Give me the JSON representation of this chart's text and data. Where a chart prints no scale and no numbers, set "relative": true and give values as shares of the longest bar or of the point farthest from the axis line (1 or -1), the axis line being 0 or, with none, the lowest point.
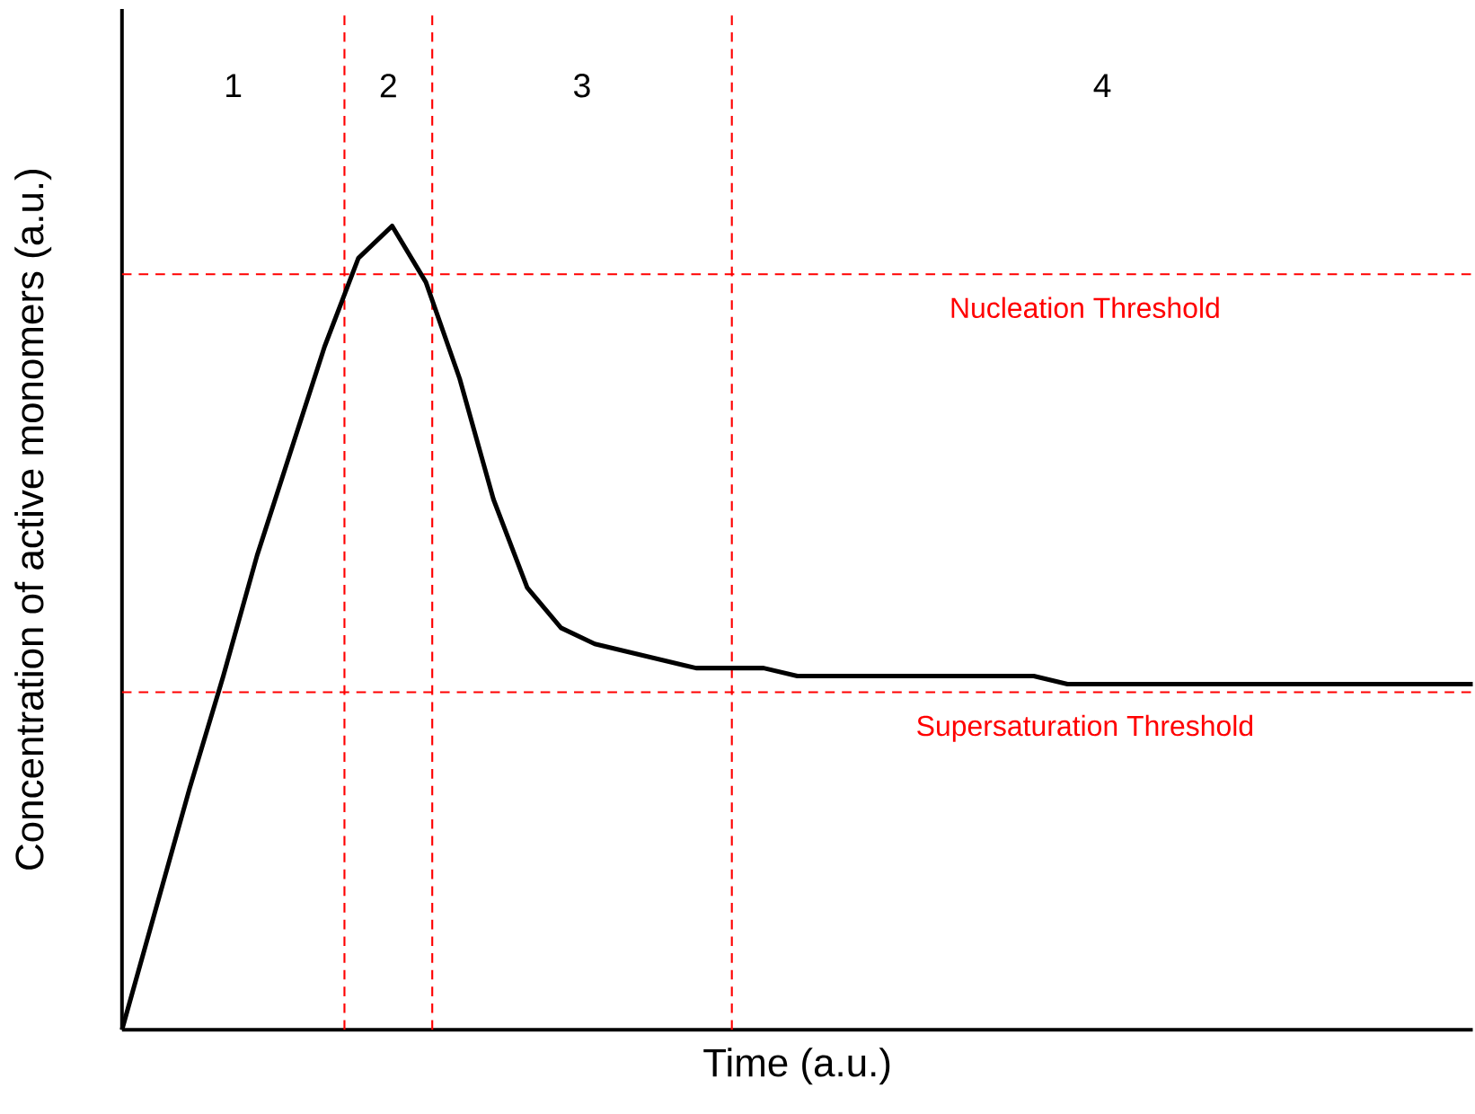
{
  "chart_data": {
    "type": "line",
    "relative": true,
    "xlabel": "Time (a.u.)",
    "ylabel": "Concentration of active monomers (a.u.)",
    "categories": [
      null,
      null,
      null,
      null,
      null,
      null,
      null,
      null,
      null,
      null,
      null,
      null,
      null,
      null,
      null,
      null,
      null,
      null,
      null,
      null,
      null,
      null,
      null,
      null,
      null,
      null,
      null,
      null,
      null,
      null,
      null,
      null,
      null,
      null,
      null,
      null,
      null,
      null,
      null,
      null,
      null
    ],
    "values": [
      0,
      0.15,
      0.3,
      0.44,
      0.59,
      0.72,
      0.85,
      0.96,
      1,
      0.93,
      0.81,
      0.66,
      0.55,
      0.5,
      0.48,
      0.47,
      0.46,
      0.45,
      0.45,
      0.45,
      0.44,
      0.44,
      0.44,
      0.44,
      0.44,
      0.44,
      0.44,
      0.44,
      0.43,
      0.43,
      0.43,
      0.43,
      0.43,
      0.43,
      0.43,
      0.43,
      0.43,
      0.43,
      0.43,
      0.43,
      0.43
    ],
    "color": "#000000",
    "tick_labels": false,
    "ref_lines": [
      {
        "axis": "y",
        "value": 0.94,
        "label": "Nucleation Threshold",
        "color": "#ff0000",
        "line_style": "dashed"
      },
      {
        "axis": "y",
        "value": 0.42,
        "label": "Supersaturation Threshold",
        "color": "#ff0000",
        "line_style": "dashed"
      }
    ],
    "annotations": [
      "1",
      "2",
      "3",
      "4"
    ]
  }
}
